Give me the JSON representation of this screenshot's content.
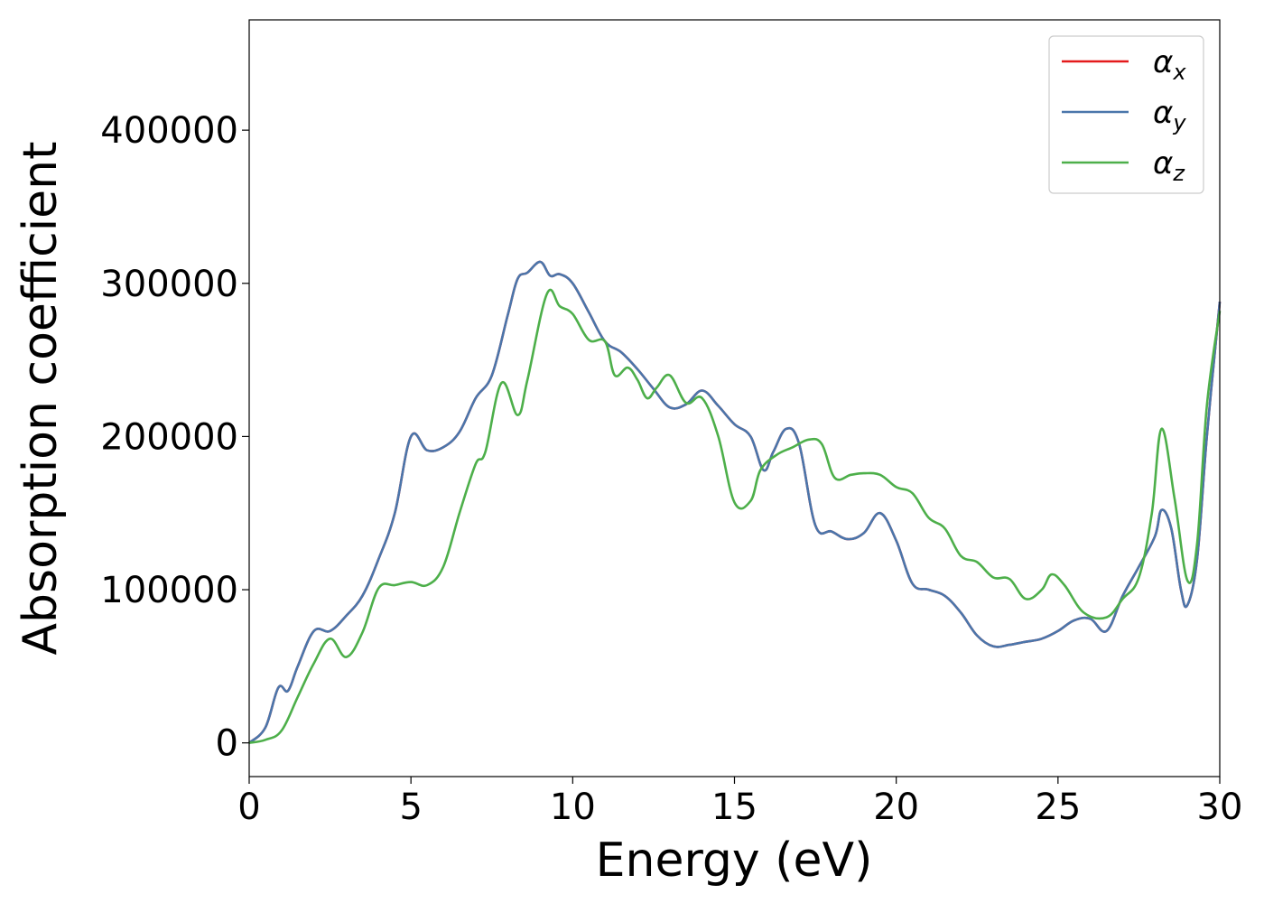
{
  "chart_data": {
    "type": "line",
    "title": "",
    "xlabel": "Energy (eV)",
    "ylabel": "Absorption coefficient",
    "xlim": [
      0,
      30
    ],
    "ylim": [
      -22000,
      472000
    ],
    "xticks": [
      0,
      5,
      10,
      15,
      20,
      25,
      30
    ],
    "xtick_labels": [
      "0",
      "5",
      "10",
      "15",
      "20",
      "25",
      "30"
    ],
    "yticks": [
      0,
      100000,
      200000,
      300000,
      400000
    ],
    "ytick_labels": [
      "0",
      "100000",
      "200000",
      "300000",
      "400000"
    ],
    "grid": false,
    "legend_position": "top-right",
    "series": [
      {
        "name": "αx",
        "legend_base": "α",
        "legend_sub": "x",
        "color": "#e41a1c",
        "x": [
          0,
          0.5,
          0.9,
          1.2,
          1.5,
          2,
          2.5,
          3,
          3.5,
          4,
          4.5,
          5,
          5.5,
          6,
          6.5,
          7,
          7.5,
          8,
          8.3,
          8.6,
          9,
          9.3,
          9.6,
          10,
          10.5,
          11,
          11.5,
          12,
          12.5,
          13,
          13.5,
          14,
          14.5,
          15,
          15.5,
          15.9,
          16.2,
          16.6,
          17,
          17.5,
          18,
          18.5,
          19,
          19.5,
          20,
          20.5,
          21,
          21.5,
          22,
          22.5,
          23,
          23.5,
          24,
          24.5,
          25,
          25.5,
          26,
          26.5,
          27,
          27.5,
          28,
          28.2,
          28.5,
          28.8,
          29,
          29.3,
          29.6,
          30
        ],
        "y": [
          0,
          10000,
          36000,
          34000,
          50000,
          73000,
          73000,
          83000,
          96000,
          120000,
          150000,
          200000,
          191000,
          193000,
          203000,
          225000,
          240000,
          280000,
          303000,
          307000,
          314000,
          305000,
          306000,
          300000,
          281000,
          262000,
          255000,
          244000,
          231000,
          219000,
          221000,
          230000,
          220000,
          208000,
          200000,
          178000,
          190000,
          205000,
          195000,
          142000,
          138000,
          133000,
          137000,
          150000,
          132000,
          104000,
          100000,
          96000,
          85000,
          70000,
          63000,
          64000,
          66000,
          68000,
          73000,
          80000,
          81000,
          73000,
          96000,
          115000,
          135000,
          152000,
          140000,
          100000,
          90000,
          120000,
          200000,
          288000
        ]
      },
      {
        "name": "αy",
        "legend_base": "α",
        "legend_sub": "y",
        "color": "#4a76ab",
        "x": [
          0,
          0.5,
          0.9,
          1.2,
          1.5,
          2,
          2.5,
          3,
          3.5,
          4,
          4.5,
          5,
          5.5,
          6,
          6.5,
          7,
          7.5,
          8,
          8.3,
          8.6,
          9,
          9.3,
          9.6,
          10,
          10.5,
          11,
          11.5,
          12,
          12.5,
          13,
          13.5,
          14,
          14.5,
          15,
          15.5,
          15.9,
          16.2,
          16.6,
          17,
          17.5,
          18,
          18.5,
          19,
          19.5,
          20,
          20.5,
          21,
          21.5,
          22,
          22.5,
          23,
          23.5,
          24,
          24.5,
          25,
          25.5,
          26,
          26.5,
          27,
          27.5,
          28,
          28.2,
          28.5,
          28.8,
          29,
          29.3,
          29.6,
          30
        ],
        "y": [
          0,
          10000,
          36000,
          34000,
          50000,
          73000,
          73000,
          83000,
          96000,
          120000,
          150000,
          200000,
          191000,
          193000,
          203000,
          225000,
          240000,
          280000,
          303000,
          307000,
          314000,
          305000,
          306000,
          300000,
          281000,
          262000,
          255000,
          244000,
          231000,
          219000,
          221000,
          230000,
          220000,
          208000,
          200000,
          178000,
          190000,
          205000,
          195000,
          142000,
          138000,
          133000,
          137000,
          150000,
          132000,
          104000,
          100000,
          96000,
          85000,
          70000,
          63000,
          64000,
          66000,
          68000,
          73000,
          80000,
          81000,
          73000,
          96000,
          115000,
          135000,
          152000,
          140000,
          100000,
          90000,
          120000,
          200000,
          288000
        ]
      },
      {
        "name": "αz",
        "legend_base": "α",
        "legend_sub": "z",
        "color": "#4daf4a",
        "x": [
          0,
          0.5,
          1,
          1.5,
          2,
          2.5,
          3,
          3.5,
          4,
          4.5,
          5,
          5.5,
          6,
          6.5,
          7,
          7.3,
          7.8,
          8.3,
          8.6,
          9.2,
          9.6,
          10,
          10.5,
          11,
          11.3,
          11.7,
          12,
          12.3,
          12.6,
          13,
          13.5,
          14,
          14.5,
          15,
          15.5,
          15.8,
          16.3,
          16.8,
          17.3,
          17.7,
          18.1,
          18.6,
          19,
          19.5,
          20,
          20.5,
          21,
          21.5,
          22,
          22.5,
          23,
          23.5,
          24,
          24.5,
          24.8,
          25.2,
          25.8,
          26.5,
          27,
          27.5,
          27.9,
          28.2,
          28.6,
          29,
          29.3,
          29.6,
          30
        ],
        "y": [
          0,
          2000,
          8000,
          30000,
          52000,
          68000,
          56000,
          72000,
          101000,
          103000,
          105000,
          103000,
          115000,
          150000,
          182000,
          190000,
          235000,
          214000,
          237000,
          293000,
          285000,
          280000,
          263000,
          262000,
          240000,
          245000,
          237000,
          225000,
          232000,
          240000,
          222000,
          225000,
          200000,
          157000,
          158000,
          178000,
          188000,
          193000,
          198000,
          195000,
          173000,
          175000,
          176000,
          175000,
          167000,
          163000,
          147000,
          140000,
          122000,
          118000,
          108000,
          107000,
          94000,
          100000,
          110000,
          103000,
          85000,
          82000,
          94000,
          108000,
          150000,
          205000,
          160000,
          106000,
          130000,
          220000,
          282000
        ]
      }
    ]
  }
}
